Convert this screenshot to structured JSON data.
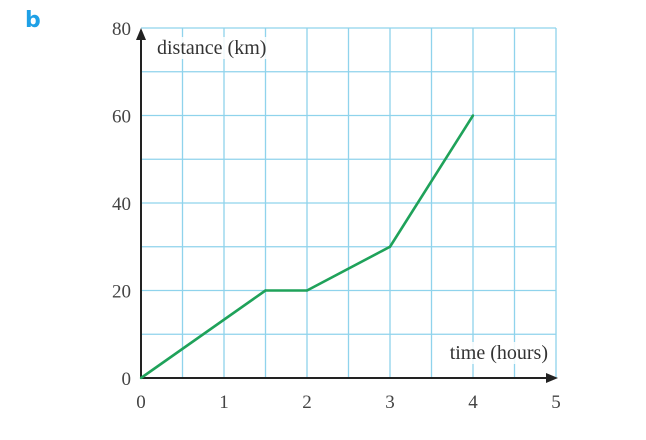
{
  "part_label": "b",
  "chart_data": {
    "type": "line",
    "title": "",
    "xlabel": "time (hours)",
    "ylabel": "distance (km)",
    "xlim": [
      0,
      5
    ],
    "ylim": [
      0,
      80
    ],
    "xticks": [
      "0",
      "1",
      "2",
      "3",
      "4",
      "5"
    ],
    "yticks": [
      "0",
      "20",
      "40",
      "60",
      "80"
    ],
    "grid": true,
    "grid_step": {
      "x": 0.5,
      "y": 10
    },
    "colors": {
      "line": "#1fa25a",
      "grid": "#8fd3ec",
      "axis": "#222222",
      "part_label": "#1ea0e6"
    },
    "series": [
      {
        "x": [
          0,
          1.5,
          2,
          3,
          4
        ],
        "y": [
          0,
          20,
          20,
          30,
          60
        ]
      }
    ]
  }
}
